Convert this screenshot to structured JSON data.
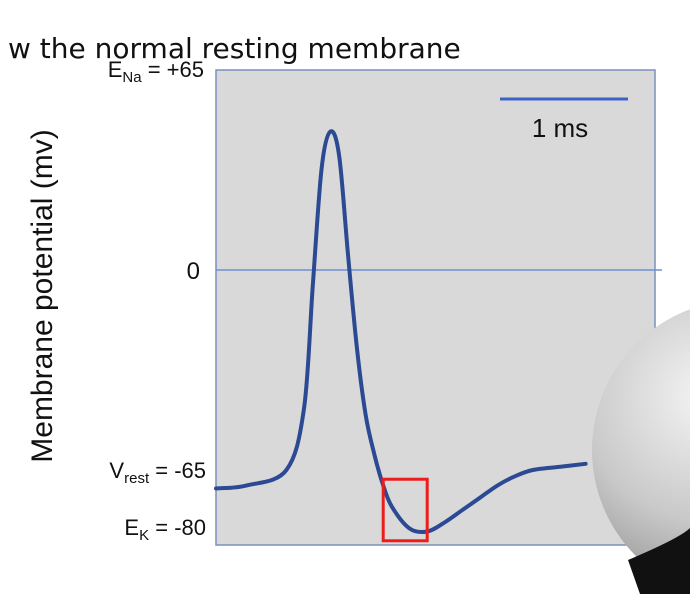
{
  "caption": "w the normal resting membrane",
  "colors": {
    "plot_bg": "#d9d9d9",
    "frame": "#7b8fbd",
    "trace": "#2b4a93",
    "zero_line": "#6f8fd0",
    "scalebar": "#3d63c4",
    "highlight": "#ee1d1d",
    "text": "#111111"
  },
  "chart_data": {
    "type": "line",
    "ylabel": "Membrane potential (mv)",
    "ylim": [
      -90,
      65
    ],
    "grid": false,
    "reference_labels": {
      "ena": {
        "main": "E",
        "sub": "Na",
        "rest": " = +65"
      },
      "zero": "0",
      "vrest": {
        "main": "V",
        "sub": "rest",
        "rest": " = -65"
      },
      "ek": {
        "main": "E",
        "sub": "K",
        "rest": " = -80"
      }
    },
    "zero_line_value": 0,
    "scale_bar": {
      "label": "1 ms",
      "duration_ms": 1
    },
    "series": [
      {
        "x": [
          0,
          0.35,
          0.8,
          1.0,
          1.1,
          1.2,
          1.3,
          1.4,
          1.5,
          1.6,
          1.7,
          1.8,
          1.9,
          2.0,
          2.2,
          2.4,
          2.6,
          2.8,
          3.0,
          3.2,
          3.4,
          3.6,
          3.9,
          4.2
        ],
        "values": [
          -71,
          -70,
          -65,
          -45,
          -5,
          33,
          45,
          37,
          5,
          -25,
          -47,
          -60,
          -70,
          -77,
          -84,
          -85,
          -82,
          -78,
          -74,
          -70,
          -67,
          -65,
          -64,
          -63
        ]
      }
    ],
    "highlight_box": {
      "x_range": [
        1.9,
        2.4
      ],
      "y_range": [
        -88,
        -68
      ]
    }
  }
}
